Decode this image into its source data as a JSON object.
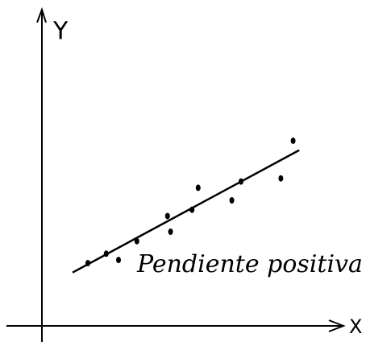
{
  "chart_data": {
    "type": "scatter",
    "x_label": "X",
    "y_label": "Y",
    "annotation": "Pendiente positiva",
    "x": [
      15,
      21,
      25,
      31,
      41,
      42,
      49,
      51,
      62,
      65,
      78,
      82
    ],
    "y": [
      20,
      23,
      21,
      27,
      35,
      30,
      37,
      44,
      40,
      46,
      47,
      59
    ],
    "color": "#000000",
    "line": {
      "x": [
        10,
        84
      ],
      "y": [
        17,
        56
      ],
      "color": "#000000"
    },
    "xlim": [
      0,
      100
    ],
    "ylim": [
      0,
      100
    ]
  }
}
